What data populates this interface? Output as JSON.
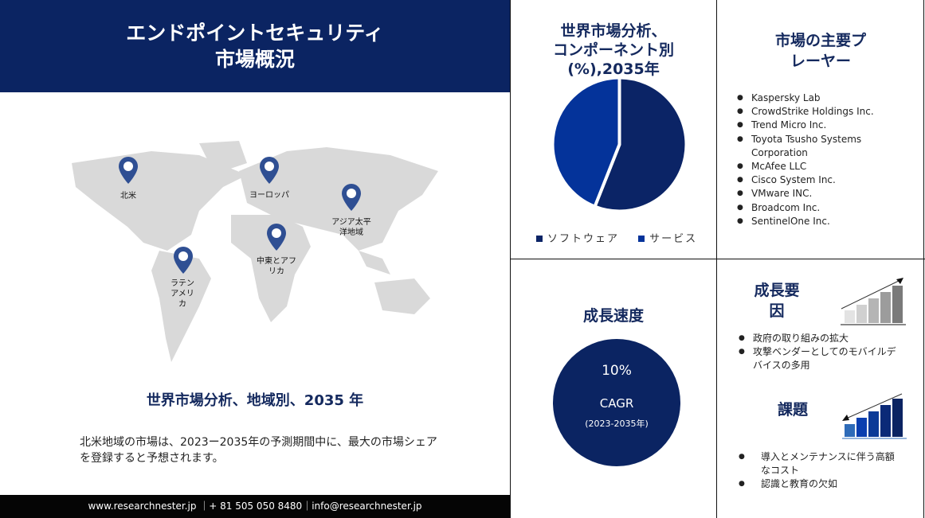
{
  "header": {
    "title_line1": "エンドポイントセキュリティ",
    "title_line2": "市場概況"
  },
  "map": {
    "regions": [
      {
        "label": "北米"
      },
      {
        "label": "ヨーロッパ"
      },
      {
        "label": "アジア太平洋地域"
      },
      {
        "label": "中東とアフリカ"
      },
      {
        "label": "ラテンアメリカ"
      }
    ],
    "pin_color": "#2f4f93"
  },
  "regional": {
    "title": "世界市場分析、地域別、2035 年",
    "description": "北米地域の市場は、2023ー2035年の予測期間中に、最大の市場シェアを登録すると予想されます。"
  },
  "footer": {
    "text": "www.researchnester.jp ｜+ 81 505 050 8480｜info@researchnester.jp"
  },
  "component_chart": {
    "title_line1": "世界市場分析、",
    "title_line2": "コンポーネント別",
    "title_line3": "(%),2035年"
  },
  "chart_data": {
    "type": "pie",
    "title": "世界市場分析、コンポーネント別(%),2035年",
    "series": [
      {
        "name": "ソフトウェア",
        "value": 56,
        "color": "#0b2466"
      },
      {
        "name": "サービス",
        "value": 44,
        "color": "#04339a"
      }
    ],
    "legend_placement": "bottom"
  },
  "players": {
    "title_line1": "市場の主要プ",
    "title_line2": "レーヤー",
    "items": [
      "Kaspersky Lab",
      "CrowdStrike Holdings Inc.",
      "Trend Micro Inc.",
      "Toyota Tsusho Systems Corporation",
      "McAfee LLC",
      "Cisco System Inc.",
      "VMware INC.",
      "Broadcom Inc.",
      "SentinelOne Inc."
    ]
  },
  "growth": {
    "title": "成長速度",
    "value": "10%",
    "label": "CAGR",
    "period": "(2023-2035年)"
  },
  "drivers": {
    "title_line1": "成長要",
    "title_line2": "因",
    "items": [
      "政府の取り組みの拡大",
      "攻撃ベンダーとしてのモバイルデバイスの多用"
    ]
  },
  "challenges": {
    "title": "課題",
    "items": [
      "導入とメンテナンスに伴う高額なコスト",
      "認識と教育の欠如"
    ]
  }
}
